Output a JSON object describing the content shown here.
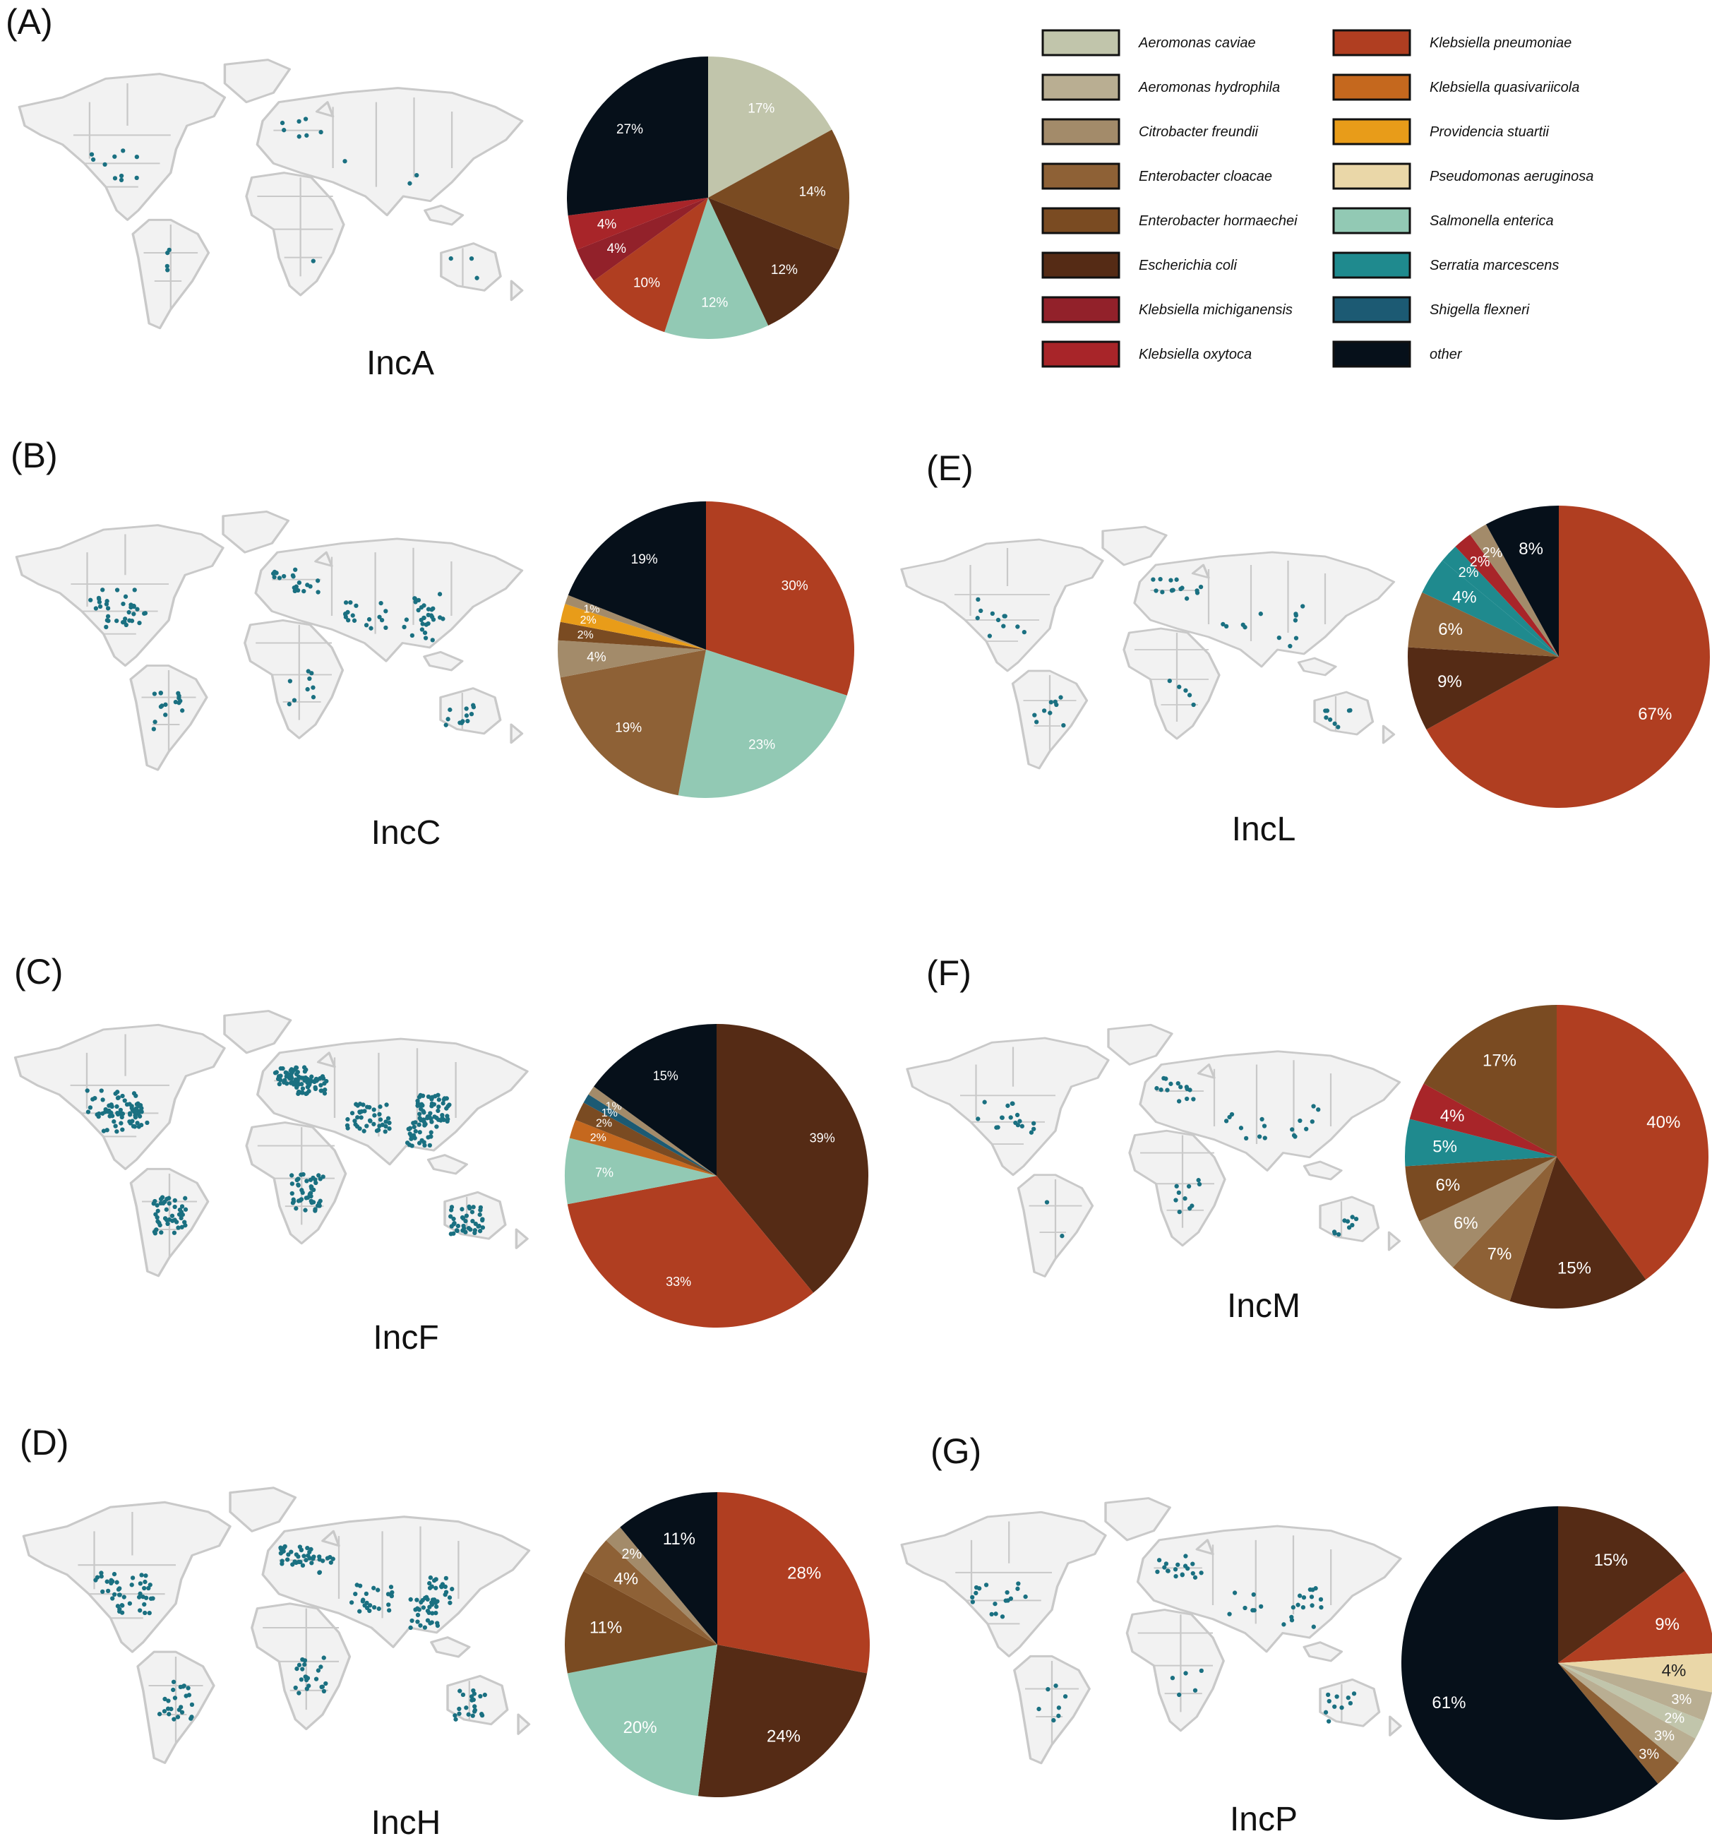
{
  "legend": [
    {
      "key": "caviae",
      "name": "Aeromonas caviae",
      "color": "#c1c5ab"
    },
    {
      "key": "hydrophila",
      "name": "Aeromonas hydrophila",
      "color": "#b9ae92"
    },
    {
      "key": "citro",
      "name": "Citrobacter freundii",
      "color": "#a38b6a"
    },
    {
      "key": "cloacae",
      "name": "Enterobacter cloacae",
      "color": "#8e6136"
    },
    {
      "key": "hormaechei",
      "name": "Enterobacter hormaechei",
      "color": "#7a4b22"
    },
    {
      "key": "ecoli",
      "name": "Escherichia coli",
      "color": "#552b15"
    },
    {
      "key": "michigan",
      "name": "Klebsiella michiganensis",
      "color": "#92212a"
    },
    {
      "key": "oxytoca",
      "name": "Klebsiella oxytoca",
      "color": "#a82529"
    },
    {
      "key": "kpneu",
      "name": "Klebsiella pneumoniae",
      "color": "#b03e21"
    },
    {
      "key": "quasi",
      "name": "Klebsiella quasivariicola",
      "color": "#c5681e"
    },
    {
      "key": "provid",
      "name": "Providencia stuartii",
      "color": "#e89c19"
    },
    {
      "key": "pseudo",
      "name": "Pseudomonas aeruginosa",
      "color": "#ead7a8"
    },
    {
      "key": "salm",
      "name": "Salmonella enterica",
      "color": "#92c9b4"
    },
    {
      "key": "serratia",
      "name": "Serratia marcescens",
      "color": "#1f8a8e"
    },
    {
      "key": "shigella",
      "name": "Shigella flexneri",
      "color": "#1c5a73"
    },
    {
      "key": "other",
      "name": "other",
      "color": "#06101a"
    }
  ],
  "map_land_color": "#f2f2f2",
  "map_border_color": "#c9c9c9",
  "dot_color": "#1a7081",
  "chart_data": [
    {
      "panel": "(A)",
      "name": "IncA",
      "type": "pie",
      "slices": [
        {
          "species": "caviae",
          "value": 17,
          "label": "17%"
        },
        {
          "species": "hormaechei",
          "value": 14,
          "label": "14%"
        },
        {
          "species": "ecoli",
          "value": 12,
          "label": "12%"
        },
        {
          "species": "salm",
          "value": 12,
          "label": "12%"
        },
        {
          "species": "kpneu",
          "value": 10,
          "label": "10%"
        },
        {
          "species": "michigan",
          "value": 4,
          "label": "4%"
        },
        {
          "species": "oxytoca",
          "value": 4,
          "label": "4%"
        },
        {
          "species": "other",
          "value": 27,
          "label": "27%"
        }
      ]
    },
    {
      "panel": "(B)",
      "name": "IncC",
      "type": "pie",
      "slices": [
        {
          "species": "kpneu",
          "value": 30,
          "label": "30%"
        },
        {
          "species": "salm",
          "value": 23,
          "label": "23%"
        },
        {
          "species": "cloacae",
          "value": 19,
          "label": "19%"
        },
        {
          "species": "citro",
          "value": 4,
          "label": "4%"
        },
        {
          "species": "hormaechei",
          "value": 2,
          "label": "2%"
        },
        {
          "species": "provid",
          "value": 2,
          "label": "2%"
        },
        {
          "species": "citro",
          "value": 1,
          "label": "1%"
        },
        {
          "species": "other",
          "value": 19,
          "label": "19%"
        }
      ]
    },
    {
      "panel": "(C)",
      "name": "IncF",
      "type": "pie",
      "slices": [
        {
          "species": "ecoli",
          "value": 39,
          "label": "39%"
        },
        {
          "species": "kpneu",
          "value": 33,
          "label": "33%"
        },
        {
          "species": "salm",
          "value": 7,
          "label": "7%"
        },
        {
          "species": "quasi",
          "value": 2,
          "label": "2%"
        },
        {
          "species": "hormaechei",
          "value": 2,
          "label": "2%"
        },
        {
          "species": "shigella",
          "value": 1,
          "label": "1%"
        },
        {
          "species": "citro",
          "value": 1,
          "label": "1%"
        },
        {
          "species": "other",
          "value": 15,
          "label": "15%"
        }
      ]
    },
    {
      "panel": "(D)",
      "name": "IncH",
      "type": "pie",
      "slices": [
        {
          "species": "kpneu",
          "value": 28,
          "label": "28%"
        },
        {
          "species": "ecoli",
          "value": 24,
          "label": "24%"
        },
        {
          "species": "salm",
          "value": 20,
          "label": "20%"
        },
        {
          "species": "hormaechei",
          "value": 11,
          "label": "11%"
        },
        {
          "species": "cloacae",
          "value": 4,
          "label": "4%"
        },
        {
          "species": "citro",
          "value": 2,
          "label": "2%"
        },
        {
          "species": "other",
          "value": 11,
          "label": "11%"
        }
      ]
    },
    {
      "panel": "(E)",
      "name": "IncL",
      "type": "pie",
      "slices": [
        {
          "species": "kpneu",
          "value": 67,
          "label": "67%"
        },
        {
          "species": "ecoli",
          "value": 9,
          "label": "9%"
        },
        {
          "species": "cloacae",
          "value": 6,
          "label": "6%"
        },
        {
          "species": "serratia",
          "value": 4,
          "label": "4%"
        },
        {
          "species": "serratia",
          "value": 2,
          "label": "2%"
        },
        {
          "species": "oxytoca",
          "value": 2,
          "label": "2%"
        },
        {
          "species": "citro",
          "value": 2,
          "label": "2%"
        },
        {
          "species": "other",
          "value": 8,
          "label": "8%"
        }
      ]
    },
    {
      "panel": "(F)",
      "name": "IncM",
      "type": "pie",
      "slices": [
        {
          "species": "kpneu",
          "value": 40,
          "label": "40%"
        },
        {
          "species": "ecoli",
          "value": 15,
          "label": "15%"
        },
        {
          "species": "cloacae",
          "value": 7,
          "label": "7%"
        },
        {
          "species": "citro",
          "value": 6,
          "label": "6%"
        },
        {
          "species": "hormaechei",
          "value": 6,
          "label": "6%"
        },
        {
          "species": "serratia",
          "value": 5,
          "label": "5%"
        },
        {
          "species": "oxytoca",
          "value": 4,
          "label": "4%"
        },
        {
          "species": "hormaechei",
          "value": 17,
          "label": "17%"
        }
      ]
    },
    {
      "panel": "(G)",
      "name": "IncP",
      "type": "pie",
      "slices": [
        {
          "species": "ecoli",
          "value": 15,
          "label": "15%"
        },
        {
          "species": "kpneu",
          "value": 9,
          "label": "9%"
        },
        {
          "species": "pseudo",
          "value": 4,
          "label": "4%"
        },
        {
          "species": "hydrophila",
          "value": 3,
          "label": "3%"
        },
        {
          "species": "caviae",
          "value": 2,
          "label": "2%"
        },
        {
          "species": "hydrophila",
          "value": 3,
          "label": "3%"
        },
        {
          "species": "cloacae",
          "value": 3,
          "label": "3%"
        },
        {
          "species": "other",
          "value": 61,
          "label": "61%"
        }
      ]
    }
  ]
}
